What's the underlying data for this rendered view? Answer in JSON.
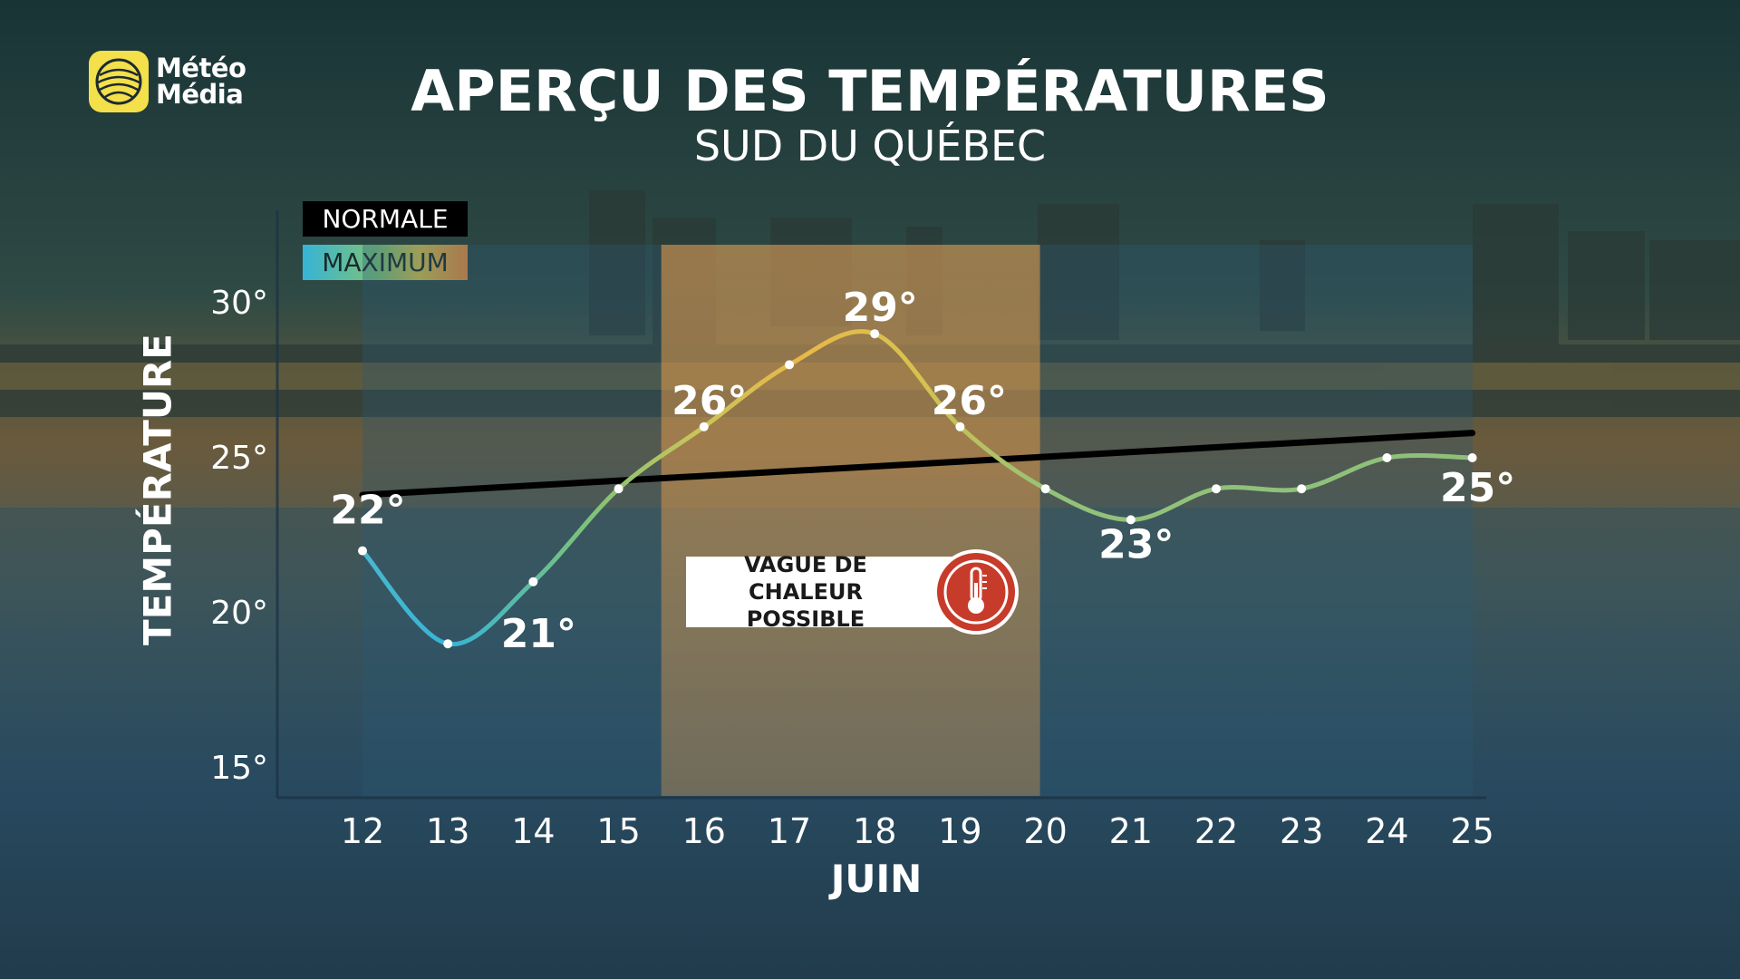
{
  "logo": {
    "line1": "Météo",
    "line2": "Média"
  },
  "header": {
    "title": "APERÇU DES TEMPÉRATURES",
    "subtitle": "SUD DU QUÉBEC"
  },
  "legend": {
    "normal": "NORMALE",
    "maximum": "MAXIMUM"
  },
  "callout": {
    "line1": "VAGUE DE CHALEUR",
    "line2": "POSSIBLE"
  },
  "colors": {
    "line_cold": "#36b4d6",
    "line_mid": "#7cc27a",
    "line_hot": "#f0a040",
    "normal": "#000000",
    "highlight": "#f2a24a"
  },
  "chart_data": {
    "type": "line",
    "xlabel": "JUIN",
    "ylabel": "TEMPÉRATURE",
    "categories": [
      "12",
      "13",
      "14",
      "15",
      "16",
      "17",
      "18",
      "19",
      "20",
      "21",
      "22",
      "23",
      "24",
      "25"
    ],
    "ylim": [
      15,
      30
    ],
    "yticks": [
      "15°",
      "20°",
      "25°",
      "30°"
    ],
    "series": [
      {
        "name": "MAXIMUM",
        "values": [
          22,
          19,
          21,
          24,
          26,
          28,
          29,
          26,
          24,
          23,
          24,
          24,
          25,
          25
        ]
      },
      {
        "name": "NORMALE",
        "values": [
          23.8,
          24.0,
          24.2,
          24.4,
          24.6,
          24.8,
          25.0,
          25.1,
          25.2,
          25.3,
          25.4,
          25.5,
          25.6,
          25.8
        ]
      }
    ],
    "data_labels": [
      {
        "index": 0,
        "text": "22°"
      },
      {
        "index": 2,
        "text": "21°"
      },
      {
        "index": 4,
        "text": "26°"
      },
      {
        "index": 6,
        "text": "29°"
      },
      {
        "index": 7,
        "text": "26°"
      },
      {
        "index": 9,
        "text": "23°"
      },
      {
        "index": 13,
        "text": "25°"
      }
    ],
    "highlight_range": {
      "from": "16",
      "to": "20",
      "label": "VAGUE DE CHALEUR POSSIBLE"
    },
    "grid": false
  }
}
